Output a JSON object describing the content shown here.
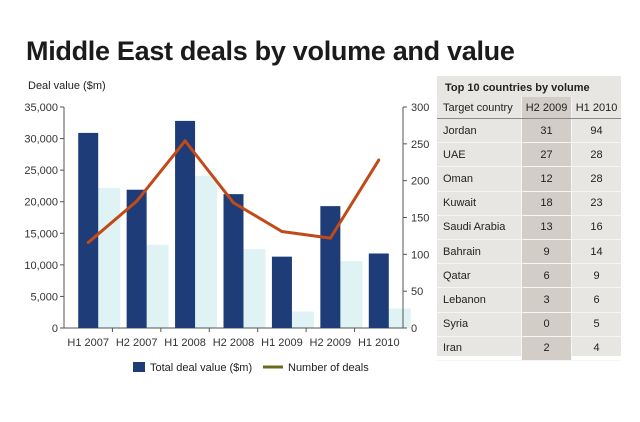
{
  "title": "Middle East deals by volume and value",
  "colors": {
    "bar": "#1d3c78",
    "line": "#c24a18",
    "line_legend": "#6b6a1c",
    "bar_shadow": "#dff3f5",
    "table_bg": "#e8e6e3",
    "table_col_h2": "#d2cec7"
  },
  "chart_data": {
    "type": "bar",
    "title": "Middle East deals by volume and value",
    "ylabel": "Deal value ($m)",
    "xlabel": "",
    "categories": [
      "H1 2007",
      "H2 2007",
      "H1 2008",
      "H2 2008",
      "H1 2009",
      "H2 2009",
      "H1 2010"
    ],
    "series": [
      {
        "name": "Total deal value ($m)",
        "type": "bar",
        "axis": "left",
        "values": [
          30900,
          21900,
          32800,
          21200,
          11300,
          19300,
          11800
        ]
      },
      {
        "name": "Number of deals",
        "type": "line",
        "axis": "right",
        "values": [
          116,
          172,
          254,
          170,
          131,
          122,
          228
        ]
      }
    ],
    "ylim_left": [
      0,
      35000
    ],
    "ylim_right": [
      0,
      300
    ],
    "yticks_left": [
      "0",
      "5,000",
      "10,000",
      "15,000",
      "20,000",
      "25,000",
      "30,000",
      "35,000"
    ],
    "yticks_right": [
      "0",
      "50",
      "100",
      "150",
      "200",
      "250",
      "300"
    ],
    "legend": {
      "position": "bottom",
      "entries": [
        "Total deal value ($m)",
        "Number of deals"
      ]
    }
  },
  "table": {
    "title": "Top 10 countries by volume",
    "headers": [
      "Target country",
      "H2 2009",
      "H1 2010"
    ],
    "rows": [
      {
        "country": "Jordan",
        "h2_2009": "31",
        "h1_2010": "94"
      },
      {
        "country": "UAE",
        "h2_2009": "27",
        "h1_2010": "28"
      },
      {
        "country": "Oman",
        "h2_2009": "12",
        "h1_2010": "28"
      },
      {
        "country": "Kuwait",
        "h2_2009": "18",
        "h1_2010": "23"
      },
      {
        "country": "Saudi Arabia",
        "h2_2009": "13",
        "h1_2010": "16"
      },
      {
        "country": "Bahrain",
        "h2_2009": "9",
        "h1_2010": "14"
      },
      {
        "country": "Qatar",
        "h2_2009": "6",
        "h1_2010": "9"
      },
      {
        "country": "Lebanon",
        "h2_2009": "3",
        "h1_2010": "6"
      },
      {
        "country": "Syria",
        "h2_2009": "0",
        "h1_2010": "5"
      },
      {
        "country": "Iran",
        "h2_2009": "2",
        "h1_2010": "4"
      }
    ]
  }
}
